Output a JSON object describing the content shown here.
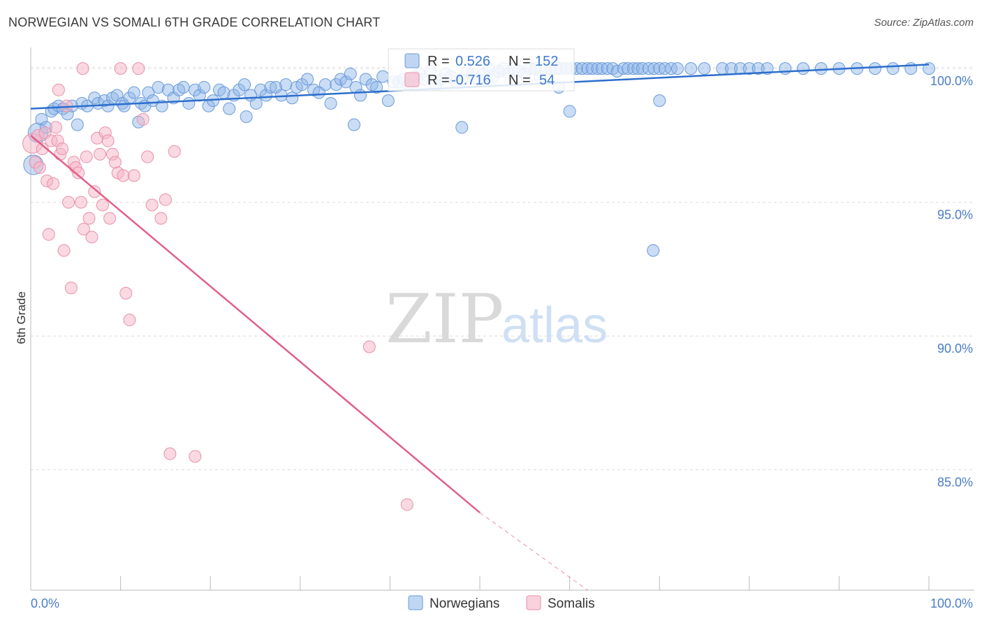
{
  "title": "NORWEGIAN VS SOMALI 6TH GRADE CORRELATION CHART",
  "source": "Source: ZipAtlas.com",
  "watermark": {
    "zip": "ZIP",
    "atlas": "atlas"
  },
  "chart_data": {
    "type": "scatter",
    "title": "NORWEGIAN VS SOMALI 6TH GRADE CORRELATION CHART",
    "xlabel": "",
    "ylabel": "6th Grade",
    "xlim": [
      0,
      100
    ],
    "ylim": [
      80.5,
      100.5
    ],
    "x_tick_labels": [
      "0.0%",
      "100.0%"
    ],
    "y_ticks": [
      85,
      90,
      95,
      100
    ],
    "y_tick_labels": [
      "85.0%",
      "90.0%",
      "95.0%",
      "100.0%"
    ],
    "legend": [
      {
        "name": "Norwegians",
        "r_label": "R =",
        "r_value": "0.526",
        "n_label": "N =",
        "n_value": "152",
        "color": "#8ab4e8",
        "stroke": "#6a9ad8"
      },
      {
        "name": "Somalis",
        "r_label": "R =",
        "r_value": "-0.716",
        "n_label": "N =",
        "n_value": "54",
        "color": "#f5b3c6",
        "stroke": "#e890aa"
      }
    ],
    "trend_lines": [
      {
        "series": "Norwegians",
        "color": "#2c6fcc",
        "x": [
          0,
          100
        ],
        "y": [
          98.5,
          100.15
        ]
      },
      {
        "series": "Somalis",
        "color": "#e0608a",
        "x": [
          0,
          50
        ],
        "y": [
          97.5,
          83.4
        ],
        "dashed_to": [
          62,
          80.5
        ]
      }
    ],
    "series": [
      {
        "name": "Norwegians",
        "color": "#8ab4e8",
        "x": [
          0.3,
          0.8,
          1.2,
          1.7,
          2.3,
          2.6,
          3.1,
          3.6,
          4.1,
          4.6,
          5.2,
          5.7,
          6.3,
          7.1,
          7.5,
          8.2,
          8.6,
          9.1,
          9.6,
          10.2,
          10.4,
          11.0,
          11.5,
          12.3,
          12.7,
          13.1,
          13.6,
          14.2,
          14.6,
          15.3,
          15.9,
          16.5,
          17.0,
          17.6,
          18.3,
          18.8,
          19.3,
          19.8,
          20.3,
          21.0,
          21.5,
          22.1,
          22.6,
          23.2,
          23.8,
          24.5,
          25.1,
          25.6,
          26.2,
          26.7,
          27.3,
          27.9,
          28.4,
          29.1,
          29.6,
          30.2,
          30.8,
          31.5,
          32.1,
          32.8,
          33.4,
          34.0,
          34.5,
          35.1,
          35.6,
          36.2,
          36.7,
          37.3,
          38.0,
          38.5,
          39.2,
          39.8,
          40.4,
          41.0,
          41.5,
          42.1,
          42.7,
          43.3,
          43.9,
          44.5,
          45.1,
          45.7,
          46.2,
          46.8,
          47.4,
          48.0,
          48.6,
          49.2,
          49.8,
          50.4,
          51.0,
          51.5,
          52.1,
          52.6,
          53.2,
          53.8,
          54.3,
          55.0,
          55.6,
          56.2,
          56.7,
          57.3,
          57.9,
          58.5,
          59.0,
          59.6,
          60.2,
          60.8,
          61.4,
          62.0,
          62.5,
          63.1,
          63.6,
          64.2,
          64.8,
          65.3,
          66.0,
          66.5,
          67.1,
          67.6,
          68.1,
          68.8,
          69.4,
          70.0,
          70.6,
          71.3,
          72.0,
          73.5,
          75.0,
          77.0,
          78.0,
          79.0,
          80.0,
          81.0,
          82.0,
          84.0,
          86.0,
          88.0,
          90.0,
          92.0,
          94.0,
          96.0,
          98.0,
          100.0,
          12.0,
          24.0,
          36.0,
          48.0,
          60.0,
          70.0,
          69.3,
          58.8
        ],
        "y": [
          96.4,
          97.6,
          98.1,
          97.8,
          98.4,
          98.5,
          98.6,
          98.5,
          98.3,
          98.6,
          97.9,
          98.7,
          98.6,
          98.9,
          98.7,
          98.8,
          98.6,
          98.9,
          99.0,
          98.7,
          98.6,
          98.9,
          99.1,
          98.7,
          98.6,
          99.1,
          98.8,
          99.3,
          98.6,
          99.2,
          98.9,
          99.2,
          99.3,
          98.7,
          99.2,
          99.0,
          99.3,
          98.6,
          98.8,
          99.2,
          99.1,
          98.5,
          99.0,
          99.2,
          99.4,
          99.0,
          98.7,
          99.2,
          99.0,
          99.3,
          99.3,
          99.0,
          99.4,
          98.9,
          99.3,
          99.4,
          99.6,
          99.2,
          99.1,
          99.4,
          98.7,
          99.4,
          99.6,
          99.5,
          99.8,
          99.3,
          99.0,
          99.6,
          99.4,
          99.3,
          99.7,
          98.8,
          99.5,
          99.5,
          99.6,
          99.4,
          99.7,
          99.8,
          99.6,
          99.9,
          99.4,
          99.6,
          99.8,
          99.7,
          99.5,
          99.6,
          99.9,
          99.8,
          99.6,
          99.8,
          100.0,
          99.7,
          99.9,
          100.0,
          99.8,
          100.0,
          99.9,
          99.8,
          100.0,
          100.0,
          99.7,
          100.0,
          100.0,
          100.0,
          100.0,
          100.0,
          100.0,
          100.0,
          100.0,
          100.0,
          100.0,
          100.0,
          100.0,
          100.0,
          100.0,
          99.9,
          100.0,
          100.0,
          100.0,
          100.0,
          100.0,
          100.0,
          100.0,
          100.0,
          100.0,
          100.0,
          100.0,
          100.0,
          100.0,
          100.0,
          100.0,
          100.0,
          100.0,
          100.0,
          100.0,
          100.0,
          100.0,
          100.0,
          100.0,
          100.0,
          100.0,
          100.0,
          100.0,
          100.0,
          98.0,
          98.2,
          97.9,
          97.8,
          98.4,
          98.8,
          93.2,
          99.3
        ],
        "sizes": [
          2,
          2,
          1,
          1,
          1,
          1,
          1,
          1,
          1,
          1,
          1,
          1,
          1,
          1,
          1,
          1,
          1,
          1,
          1,
          1,
          1,
          1,
          1,
          1,
          1,
          1,
          1,
          1,
          1,
          1,
          1,
          1,
          1,
          1,
          1,
          1,
          1,
          1,
          1,
          1,
          1,
          1,
          1,
          1,
          1,
          1,
          1,
          1,
          1,
          1,
          1,
          1,
          1,
          1,
          1,
          1,
          1,
          1,
          1,
          1,
          1,
          1,
          1,
          1,
          1,
          1,
          1,
          1,
          1,
          1,
          1,
          1,
          1,
          1,
          1,
          1,
          1,
          1,
          1,
          1,
          1,
          1,
          1,
          1,
          1,
          1,
          1,
          1,
          1,
          1,
          1,
          1,
          1,
          1,
          1,
          1,
          1,
          1,
          1,
          1,
          1,
          1,
          1,
          1,
          1,
          1,
          1,
          1,
          1,
          1,
          1,
          1,
          1,
          1,
          1,
          1,
          1,
          1,
          1,
          1,
          1,
          1,
          1,
          1,
          1,
          1,
          1,
          1,
          1,
          1,
          1,
          1,
          1,
          1,
          1,
          1,
          1,
          1,
          1,
          1,
          1,
          1,
          1,
          1,
          1,
          1,
          1,
          1,
          1,
          1,
          1,
          1
        ]
      },
      {
        "name": "Somalis",
        "color": "#f5b3c6",
        "x": [
          0.2,
          0.5,
          0.8,
          1.0,
          1.3,
          1.6,
          1.8,
          2.0,
          2.3,
          2.5,
          2.8,
          3.0,
          3.3,
          3.5,
          3.7,
          4.0,
          4.2,
          4.5,
          4.8,
          5.0,
          5.3,
          5.6,
          5.9,
          6.2,
          6.5,
          6.8,
          7.1,
          7.4,
          7.7,
          8.0,
          8.3,
          8.6,
          8.8,
          9.1,
          9.4,
          9.7,
          10.0,
          10.3,
          10.6,
          11.0,
          11.5,
          12.0,
          12.5,
          13.0,
          13.5,
          14.5,
          15.0,
          15.5,
          16.0,
          3.1,
          5.8,
          18.3,
          37.7,
          41.9
        ],
        "y": [
          97.2,
          96.5,
          97.5,
          96.3,
          97.0,
          97.6,
          95.8,
          93.8,
          97.3,
          95.7,
          97.8,
          97.3,
          96.8,
          97.0,
          93.2,
          98.6,
          95.0,
          91.8,
          96.5,
          96.3,
          96.1,
          95.0,
          94.0,
          96.7,
          94.4,
          93.7,
          95.4,
          97.4,
          96.8,
          94.9,
          97.6,
          97.3,
          94.4,
          96.8,
          96.5,
          96.1,
          100.0,
          96.0,
          91.6,
          90.6,
          96.0,
          100.0,
          98.1,
          96.7,
          94.9,
          94.4,
          95.1,
          85.6,
          96.9,
          99.2,
          100.0,
          85.5,
          89.6,
          83.7
        ],
        "sizes": [
          2,
          1,
          1,
          1,
          1,
          1,
          1,
          1,
          1,
          1,
          1,
          1,
          1,
          1,
          1,
          1,
          1,
          1,
          1,
          1,
          1,
          1,
          1,
          1,
          1,
          1,
          1,
          1,
          1,
          1,
          1,
          1,
          1,
          1,
          1,
          1,
          1,
          1,
          1,
          1,
          1,
          1,
          1,
          1,
          1,
          1,
          1,
          1,
          1,
          1,
          1,
          1,
          1,
          1
        ]
      }
    ]
  }
}
